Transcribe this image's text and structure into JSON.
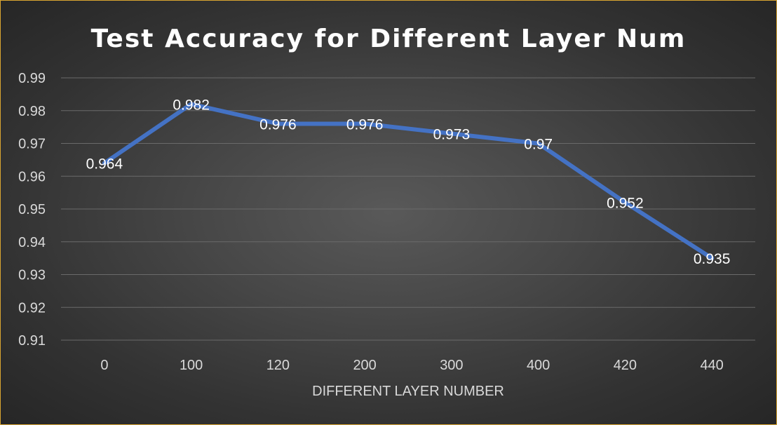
{
  "chart_data": {
    "type": "line",
    "title": "Test Accuracy for Different Layer Num",
    "xlabel": "DIFFERENT LAYER NUMBER",
    "ylabel": "",
    "categories": [
      "0",
      "100",
      "120",
      "200",
      "300",
      "400",
      "420",
      "440"
    ],
    "series": [
      {
        "values": [
          0.964,
          0.982,
          0.976,
          0.976,
          0.973,
          0.97,
          0.952,
          0.935
        ],
        "data_labels": [
          "0.964",
          "0.982",
          "0.976",
          "0.976",
          "0.973",
          "0.97",
          "0.952",
          "0.935"
        ]
      }
    ],
    "ylim": [
      0.91,
      0.99
    ],
    "yticks": [
      "0.99",
      "0.98",
      "0.97",
      "0.96",
      "0.95",
      "0.94",
      "0.93",
      "0.92",
      "0.91"
    ],
    "grid": true,
    "legend": "none",
    "colors": {
      "series": "#4472c4",
      "border": "#d9a531",
      "text": "#d9d9d9"
    }
  }
}
